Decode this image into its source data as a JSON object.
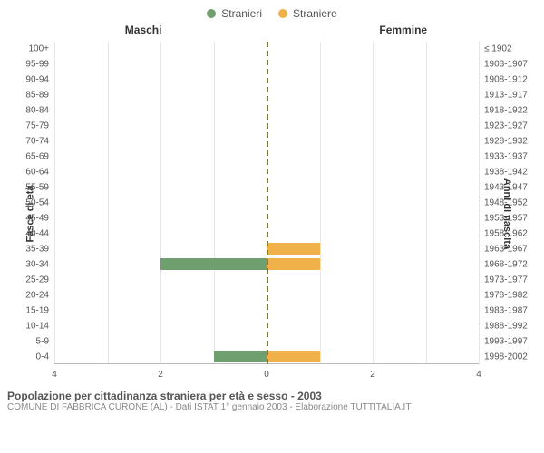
{
  "chart": {
    "type": "diverging-bar",
    "legend": {
      "male": {
        "label": "Stranieri",
        "color": "#6f9e6f"
      },
      "female": {
        "label": "Straniere",
        "color": "#f0b04a"
      }
    },
    "sections": {
      "left": "Maschi",
      "right": "Femmine"
    },
    "axes": {
      "left_title": "Fasce di età",
      "right_title": "Anni di nascita",
      "x_max": 4,
      "x_ticks_left": [
        4,
        2,
        0
      ],
      "x_ticks_right": [
        2,
        4
      ],
      "grid_color": "#e6e6e6",
      "center_line_color": "#7a7a3a",
      "axis_line_color": "#bcbcbc",
      "background_color": "#ffffff",
      "tick_fontsize": 10,
      "title_fontsize": 11
    },
    "rows": [
      {
        "age": "100+",
        "birth": "≤ 1902",
        "m": 0,
        "f": 0
      },
      {
        "age": "95-99",
        "birth": "1903-1907",
        "m": 0,
        "f": 0
      },
      {
        "age": "90-94",
        "birth": "1908-1912",
        "m": 0,
        "f": 0
      },
      {
        "age": "85-89",
        "birth": "1913-1917",
        "m": 0,
        "f": 0
      },
      {
        "age": "80-84",
        "birth": "1918-1922",
        "m": 0,
        "f": 0
      },
      {
        "age": "75-79",
        "birth": "1923-1927",
        "m": 0,
        "f": 0
      },
      {
        "age": "70-74",
        "birth": "1928-1932",
        "m": 0,
        "f": 0
      },
      {
        "age": "65-69",
        "birth": "1933-1937",
        "m": 0,
        "f": 0
      },
      {
        "age": "60-64",
        "birth": "1938-1942",
        "m": 0,
        "f": 0
      },
      {
        "age": "55-59",
        "birth": "1943-1947",
        "m": 0,
        "f": 0
      },
      {
        "age": "50-54",
        "birth": "1948-1952",
        "m": 0,
        "f": 0
      },
      {
        "age": "45-49",
        "birth": "1953-1957",
        "m": 0,
        "f": 0
      },
      {
        "age": "40-44",
        "birth": "1958-1962",
        "m": 0,
        "f": 0
      },
      {
        "age": "35-39",
        "birth": "1963-1967",
        "m": 0,
        "f": 1
      },
      {
        "age": "30-34",
        "birth": "1968-1972",
        "m": 2,
        "f": 1
      },
      {
        "age": "25-29",
        "birth": "1973-1977",
        "m": 0,
        "f": 0
      },
      {
        "age": "20-24",
        "birth": "1978-1982",
        "m": 0,
        "f": 0
      },
      {
        "age": "15-19",
        "birth": "1983-1987",
        "m": 0,
        "f": 0
      },
      {
        "age": "10-14",
        "birth": "1988-1992",
        "m": 0,
        "f": 0
      },
      {
        "age": "5-9",
        "birth": "1993-1997",
        "m": 0,
        "f": 0
      },
      {
        "age": "0-4",
        "birth": "1998-2002",
        "m": 1,
        "f": 1
      }
    ],
    "caption": {
      "main": "Popolazione per cittadinanza straniera per età e sesso - 2003",
      "sub": "COMUNE DI FABBRICA CURONE (AL) - Dati ISTAT 1° gennaio 2003 - Elaborazione TUTTITALIA.IT"
    }
  }
}
